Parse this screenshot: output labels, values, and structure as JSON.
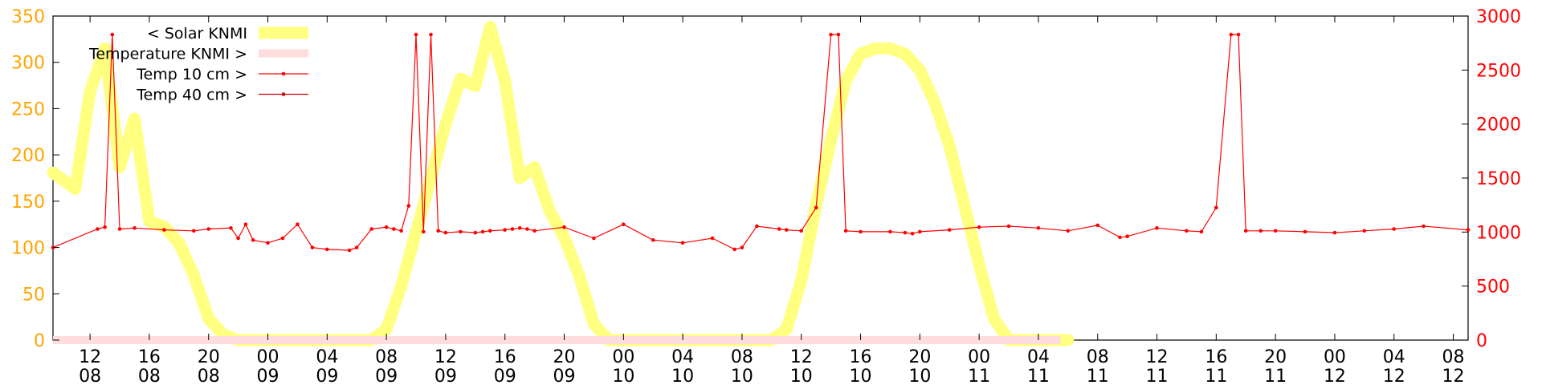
{
  "chart_data": {
    "type": "line",
    "grid": false,
    "legend_placement": "top-left",
    "x_tick_labels": [
      {
        "hour": "12",
        "day": "08"
      },
      {
        "hour": "16",
        "day": "08"
      },
      {
        "hour": "20",
        "day": "08"
      },
      {
        "hour": "00",
        "day": "09"
      },
      {
        "hour": "04",
        "day": "09"
      },
      {
        "hour": "08",
        "day": "09"
      },
      {
        "hour": "12",
        "day": "09"
      },
      {
        "hour": "16",
        "day": "09"
      },
      {
        "hour": "20",
        "day": "09"
      },
      {
        "hour": "00",
        "day": "10"
      },
      {
        "hour": "04",
        "day": "10"
      },
      {
        "hour": "08",
        "day": "10"
      },
      {
        "hour": "12",
        "day": "10"
      },
      {
        "hour": "16",
        "day": "10"
      },
      {
        "hour": "20",
        "day": "10"
      },
      {
        "hour": "00",
        "day": "11"
      },
      {
        "hour": "04",
        "day": "11"
      },
      {
        "hour": "08",
        "day": "11"
      },
      {
        "hour": "12",
        "day": "11"
      },
      {
        "hour": "16",
        "day": "11"
      },
      {
        "hour": "20",
        "day": "11"
      },
      {
        "hour": "00",
        "day": "12"
      },
      {
        "hour": "04",
        "day": "12"
      },
      {
        "hour": "08",
        "day": "12"
      }
    ],
    "x_range_hours": [
      -2.5,
      93
    ],
    "y_left": {
      "range": [
        0,
        350
      ],
      "ticks": [
        0,
        50,
        100,
        150,
        200,
        250,
        300,
        350
      ],
      "color": "#ffa500"
    },
    "y_right": {
      "range": [
        0,
        3000
      ],
      "ticks": [
        0,
        500,
        1000,
        1500,
        2000,
        2500,
        3000
      ],
      "color": "#ff0000"
    },
    "series": [
      {
        "name": "< Solar KNMI",
        "axis": "right",
        "color": "#ffff80",
        "x": [
          -2.5,
          -1,
          0,
          1,
          2,
          3,
          4,
          5,
          6,
          7,
          8,
          9,
          10,
          11,
          12,
          13,
          14,
          15,
          16,
          17,
          18,
          19,
          20,
          21,
          22,
          23,
          24,
          25,
          26,
          27,
          28,
          29,
          30,
          31,
          32,
          33,
          34,
          35,
          36,
          37,
          38,
          39,
          40,
          41,
          42,
          43,
          44,
          45,
          46,
          47,
          48,
          49,
          50,
          51,
          52,
          53,
          54,
          55,
          56,
          57,
          58,
          59,
          60,
          61,
          62,
          63,
          64,
          65,
          66
        ],
        "values": [
          1550,
          1400,
          2300,
          2700,
          1600,
          2050,
          1100,
          1050,
          900,
          600,
          200,
          50,
          0,
          0,
          0,
          0,
          0,
          0,
          0,
          0,
          0,
          0,
          100,
          500,
          1000,
          1500,
          2000,
          2420,
          2350,
          2900,
          2400,
          1500,
          1600,
          1200,
          950,
          600,
          150,
          0,
          0,
          0,
          0,
          0,
          0,
          0,
          0,
          0,
          0,
          0,
          0,
          100,
          550,
          1250,
          1850,
          2400,
          2650,
          2700,
          2700,
          2650,
          2500,
          2200,
          1800,
          1250,
          700,
          200,
          0,
          0,
          0,
          0,
          0
        ]
      },
      {
        "name": "Temperature KNMI >",
        "axis": "left",
        "color": "#ffdddd",
        "x": [
          -2.5,
          65.5
        ],
        "values": [
          0,
          0
        ]
      },
      {
        "name": "Temp 10 cm >",
        "axis": "left",
        "color": "#ff0000",
        "x": [
          -2.5,
          0.5,
          1.0,
          1.5,
          2.0,
          3.0,
          5.0,
          7.0,
          8.0,
          9.5,
          10.0,
          10.5,
          11.0,
          12.0,
          13.0,
          14.0,
          15.0,
          16.0,
          17.5,
          18.0,
          19.0,
          20.0,
          20.5,
          21.0,
          21.5,
          22.0,
          22.5,
          23.0,
          23.5,
          24.0,
          25.0,
          26.0,
          26.5,
          27.0,
          28.0,
          28.5,
          29.0,
          29.5,
          30.0,
          32.0,
          34.0,
          36.0,
          38.0,
          40.0,
          42.0,
          43.5,
          44.0,
          45.0,
          46.5,
          47.0,
          48.0,
          49.0,
          50.0,
          50.5,
          51.0,
          52.0,
          54.0,
          55.0,
          55.5,
          56.0,
          58.0,
          60.0,
          62.0,
          64.0,
          66.0,
          68.0,
          69.5,
          70.0,
          72.0,
          74.0,
          75.0,
          76.0,
          77.0,
          77.5,
          78.0,
          79.0,
          80.0,
          82.0,
          84.0,
          86.0,
          88.0,
          90.0,
          93.0
        ],
        "values": [
          100,
          120,
          122,
          330,
          120,
          121,
          119,
          118,
          120,
          121,
          110,
          125,
          108,
          105,
          110,
          125,
          100,
          98,
          97,
          100,
          120,
          122,
          120,
          118,
          145,
          330,
          117,
          330,
          118,
          116,
          117,
          116,
          117,
          118,
          119,
          120,
          121,
          120,
          118,
          122,
          110,
          125,
          108,
          105,
          110,
          98,
          100,
          123,
          120,
          119,
          118,
          143,
          330,
          330,
          118,
          117,
          117,
          116,
          115,
          117,
          119,
          122,
          123,
          121,
          118,
          124,
          111,
          112,
          121,
          118,
          117,
          143,
          330,
          330,
          118,
          118,
          118,
          117,
          116,
          118,
          120,
          123,
          119
        ]
      },
      {
        "name": "Temp 40 cm >",
        "axis": "left",
        "color": "#cc0000",
        "x": [],
        "values": []
      }
    ]
  }
}
